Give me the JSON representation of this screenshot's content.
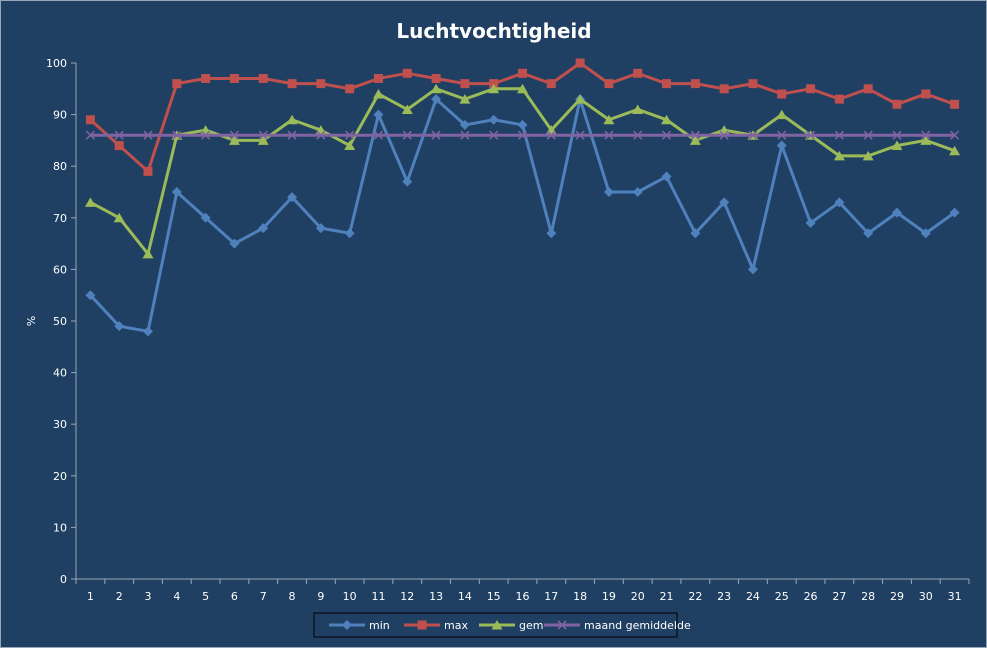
{
  "chart_data": {
    "type": "line",
    "title": "Luchtvochtigheid",
    "xlabel": "",
    "ylabel": "%",
    "ylim": [
      0,
      100
    ],
    "yticks": [
      0,
      10,
      20,
      30,
      40,
      50,
      60,
      70,
      80,
      90,
      100
    ],
    "grid": false,
    "legend_position": "bottom",
    "categories": [
      "1",
      "2",
      "3",
      "4",
      "5",
      "6",
      "7",
      "8",
      "9",
      "10",
      "11",
      "12",
      "13",
      "14",
      "15",
      "16",
      "17",
      "18",
      "19",
      "20",
      "21",
      "22",
      "23",
      "24",
      "25",
      "26",
      "27",
      "28",
      "29",
      "30",
      "31"
    ],
    "series": [
      {
        "name": "min",
        "color": "#4f81bd",
        "marker": "diamond",
        "values": [
          55,
          49,
          48,
          75,
          70,
          65,
          68,
          74,
          68,
          67,
          90,
          77,
          93,
          88,
          89,
          88,
          67,
          93,
          75,
          75,
          78,
          67,
          73,
          60,
          84,
          69,
          73,
          67,
          71,
          67,
          71
        ]
      },
      {
        "name": "max",
        "color": "#c0504d",
        "marker": "square",
        "values": [
          89,
          84,
          79,
          96,
          97,
          97,
          97,
          96,
          96,
          95,
          97,
          98,
          97,
          96,
          96,
          98,
          96,
          100,
          96,
          98,
          96,
          96,
          95,
          96,
          94,
          95,
          93,
          95,
          92,
          94,
          92
        ]
      },
      {
        "name": "gem",
        "color": "#9bbb59",
        "marker": "triangle",
        "values": [
          73,
          70,
          63,
          86,
          87,
          85,
          85,
          89,
          87,
          84,
          94,
          91,
          95,
          93,
          95,
          95,
          87,
          93,
          89,
          91,
          89,
          85,
          87,
          86,
          90,
          86,
          82,
          82,
          84,
          85,
          83
        ]
      },
      {
        "name": "maand gemiddelde",
        "color": "#8064a2",
        "marker": "x",
        "values": [
          86,
          86,
          86,
          86,
          86,
          86,
          86,
          86,
          86,
          86,
          86,
          86,
          86,
          86,
          86,
          86,
          86,
          86,
          86,
          86,
          86,
          86,
          86,
          86,
          86,
          86,
          86,
          86,
          86,
          86,
          86
        ]
      }
    ]
  }
}
